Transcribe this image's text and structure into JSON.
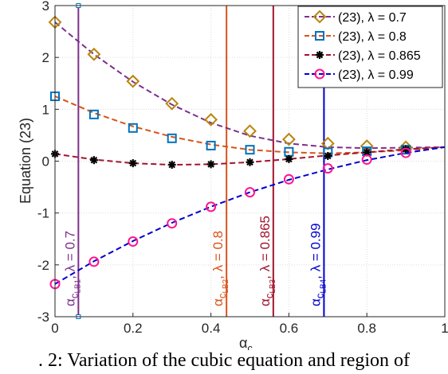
{
  "chart_data": {
    "type": "line",
    "xlabel_main": "α",
    "xlabel_sub": "c",
    "ylabel": "Equation (23)",
    "xlim": [
      0,
      1
    ],
    "ylim": [
      -3,
      3
    ],
    "xticks": [
      "0",
      "0.2",
      "0.4",
      "0.6",
      "0.8",
      "1"
    ],
    "xtick_values": [
      0,
      0.2,
      0.4,
      0.6,
      0.8,
      1
    ],
    "yticks": [
      "-3",
      "-2",
      "-1",
      "0",
      "1",
      "2",
      "3"
    ],
    "ytick_values": [
      -3,
      -2,
      -1,
      0,
      1,
      2,
      3
    ],
    "grid": true,
    "legend_position": "top-right",
    "x": [
      0,
      0.1,
      0.2,
      0.3,
      0.4,
      0.5,
      0.6,
      0.7,
      0.8,
      0.9
    ],
    "series": [
      {
        "name": "(23), λ = 0.7",
        "color": "#7e2f8e",
        "marker_color": "#b8860b",
        "marker": "diamond",
        "line": [
          [
            0,
            2.68
          ],
          [
            0.1,
            2.06
          ],
          [
            0.2,
            1.53
          ],
          [
            0.3,
            1.09
          ],
          [
            0.4,
            0.74
          ],
          [
            0.5,
            0.49
          ],
          [
            0.6,
            0.34
          ],
          [
            0.7,
            0.27
          ],
          [
            0.8,
            0.25
          ],
          [
            0.9,
            0.26
          ],
          [
            1.0,
            0.27
          ]
        ],
        "values": [
          2.68,
          2.06,
          1.54,
          1.11,
          0.8,
          0.58,
          0.42,
          0.34,
          0.29,
          0.27
        ]
      },
      {
        "name": "(23), λ = 0.8",
        "color": "#d95319",
        "marker_color": "#0072bd",
        "marker": "square",
        "line": [
          [
            0,
            1.25
          ],
          [
            0.1,
            0.93
          ],
          [
            0.2,
            0.67
          ],
          [
            0.3,
            0.47
          ],
          [
            0.4,
            0.32
          ],
          [
            0.5,
            0.22
          ],
          [
            0.6,
            0.17
          ],
          [
            0.7,
            0.15
          ],
          [
            0.8,
            0.17
          ],
          [
            0.9,
            0.21
          ],
          [
            1.0,
            0.27
          ]
        ],
        "values": [
          1.25,
          0.9,
          0.64,
          0.44,
          0.3,
          0.22,
          0.18,
          0.17,
          0.19,
          0.22
        ]
      },
      {
        "name": "(23), λ = 0.865",
        "color": "#a2142f",
        "marker_color": "#000000",
        "marker": "asterisk",
        "line": [
          [
            0,
            0.14
          ],
          [
            0.1,
            0.03
          ],
          [
            0.2,
            -0.04
          ],
          [
            0.3,
            -0.07
          ],
          [
            0.4,
            -0.06
          ],
          [
            0.5,
            -0.02
          ],
          [
            0.6,
            0.04
          ],
          [
            0.7,
            0.11
          ],
          [
            0.8,
            0.17
          ],
          [
            0.9,
            0.23
          ],
          [
            1.0,
            0.27
          ]
        ],
        "values": [
          0.14,
          0.02,
          -0.04,
          -0.07,
          -0.06,
          -0.02,
          0.04,
          0.1,
          0.17,
          0.23
        ]
      },
      {
        "name": "(23), λ = 0.99",
        "color": "#0000cd",
        "marker_color": "#ff1493",
        "marker": "circle",
        "line": [
          [
            0,
            -2.37
          ],
          [
            0.1,
            -1.93
          ],
          [
            0.2,
            -1.54
          ],
          [
            0.3,
            -1.19
          ],
          [
            0.4,
            -0.88
          ],
          [
            0.5,
            -0.6
          ],
          [
            0.6,
            -0.36
          ],
          [
            0.7,
            -0.16
          ],
          [
            0.8,
            0.02
          ],
          [
            0.9,
            0.16
          ],
          [
            1.0,
            0.27
          ]
        ],
        "values": [
          -2.37,
          -1.94,
          -1.55,
          -1.2,
          -0.88,
          -0.6,
          -0.35,
          -0.14,
          0.03,
          0.16
        ]
      }
    ],
    "vertical_lines": [
      {
        "x": 0.06,
        "color": "#7e2f8e",
        "label_main": "α",
        "label_sub": "c",
        "label_subsub": "LB1",
        "label_rest": ", λ = 0.7",
        "endpoint_markers": true
      },
      {
        "x": 0.44,
        "color": "#d95319",
        "label_main": "α",
        "label_sub": "c",
        "label_subsub": "LB2",
        "label_rest": ", λ = 0.8"
      },
      {
        "x": 0.56,
        "color": "#a2142f",
        "label_main": "α",
        "label_sub": "c",
        "label_subsub": "LB3",
        "label_rest": ", λ = 0.865"
      },
      {
        "x": 0.69,
        "color": "#0000cd",
        "label_main": "α",
        "label_sub": "c",
        "label_subsub": "LB4",
        "label_rest": ", λ = 0.99"
      }
    ]
  },
  "caption": ". 2: Variation of the cubic equation and region of"
}
